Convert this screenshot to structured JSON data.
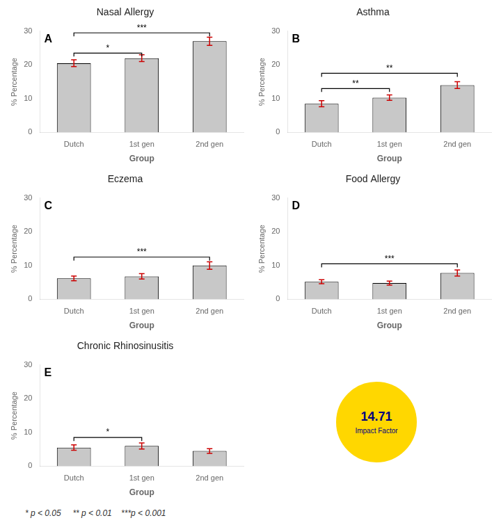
{
  "chart_data": [
    {
      "type": "bar",
      "panel_label": "A",
      "title": "Nasal Allergy",
      "categories": [
        "Dutch",
        "1st gen",
        "2nd gen"
      ],
      "values": [
        20.5,
        22.0,
        27.0
      ],
      "errors": [
        1.0,
        1.0,
        1.2
      ],
      "color": "#c8c8c8",
      "error_color": "#cc0000",
      "xlabel": "Group",
      "ylabel": "% Percentage",
      "ylim": [
        0,
        30
      ],
      "yticks": [
        0,
        10,
        20,
        30
      ],
      "grid": false,
      "significance": [
        {
          "from": "Dutch",
          "to": "1st gen",
          "y": 23.5,
          "label": "*"
        },
        {
          "from": "Dutch",
          "to": "2nd gen",
          "y": 29.5,
          "label": "***"
        }
      ]
    },
    {
      "type": "bar",
      "panel_label": "B",
      "title": "Asthma",
      "categories": [
        "Dutch",
        "1st gen",
        "2nd gen"
      ],
      "values": [
        8.5,
        10.3,
        14.0
      ],
      "errors": [
        0.9,
        0.8,
        1.0
      ],
      "color": "#c8c8c8",
      "error_color": "#cc0000",
      "xlabel": "Group",
      "ylabel": "% Percentage",
      "ylim": [
        0,
        30
      ],
      "yticks": [
        0,
        10,
        20,
        30
      ],
      "grid": false,
      "significance": [
        {
          "from": "Dutch",
          "to": "1st gen",
          "y": 13.0,
          "label": "**"
        },
        {
          "from": "Dutch",
          "to": "2nd gen",
          "y": 17.5,
          "label": "**"
        }
      ]
    },
    {
      "type": "bar",
      "panel_label": "C",
      "title": "Eczema",
      "categories": [
        "Dutch",
        "1st gen",
        "2nd gen"
      ],
      "values": [
        6.2,
        6.8,
        10.0
      ],
      "errors": [
        0.7,
        0.8,
        1.1
      ],
      "color": "#c8c8c8",
      "error_color": "#cc0000",
      "xlabel": "Group",
      "ylabel": "% Percentage",
      "ylim": [
        0,
        30
      ],
      "yticks": [
        0,
        10,
        20,
        30
      ],
      "grid": false,
      "significance": [
        {
          "from": "Dutch",
          "to": "2nd gen",
          "y": 12.5,
          "label": "***"
        }
      ]
    },
    {
      "type": "bar",
      "panel_label": "D",
      "title": "Food Allergy",
      "categories": [
        "Dutch",
        "1st gen",
        "2nd gen"
      ],
      "values": [
        5.2,
        4.8,
        7.8
      ],
      "errors": [
        0.6,
        0.6,
        0.9
      ],
      "color": "#c8c8c8",
      "error_color": "#cc0000",
      "xlabel": "Group",
      "ylabel": "% Percentage",
      "ylim": [
        0,
        30
      ],
      "yticks": [
        0,
        10,
        20,
        30
      ],
      "grid": false,
      "significance": [
        {
          "from": "Dutch",
          "to": "2nd gen",
          "y": 10.5,
          "label": "***"
        }
      ]
    },
    {
      "type": "bar",
      "panel_label": "E",
      "title": "Chronic Rhinosinusitis",
      "categories": [
        "Dutch",
        "1st gen",
        "2nd gen"
      ],
      "values": [
        5.5,
        6.0,
        4.5
      ],
      "errors": [
        0.8,
        0.9,
        0.7
      ],
      "color": "#c8c8c8",
      "error_color": "#cc0000",
      "xlabel": "Group",
      "ylabel": "% Percentage",
      "ylim": [
        0,
        30
      ],
      "yticks": [
        0,
        10,
        20,
        30
      ],
      "grid": false,
      "significance": [
        {
          "from": "Dutch",
          "to": "1st gen",
          "y": 8.5,
          "label": "*"
        }
      ]
    }
  ],
  "annotations": [
    {
      "text": "* p < 0.05     ** p < 0.01    ***p < 0.001"
    },
    {
      "text": "14.71",
      "subtitle": "Impact Factor",
      "color": "#000080",
      "fill": "#FFD700"
    }
  ]
}
